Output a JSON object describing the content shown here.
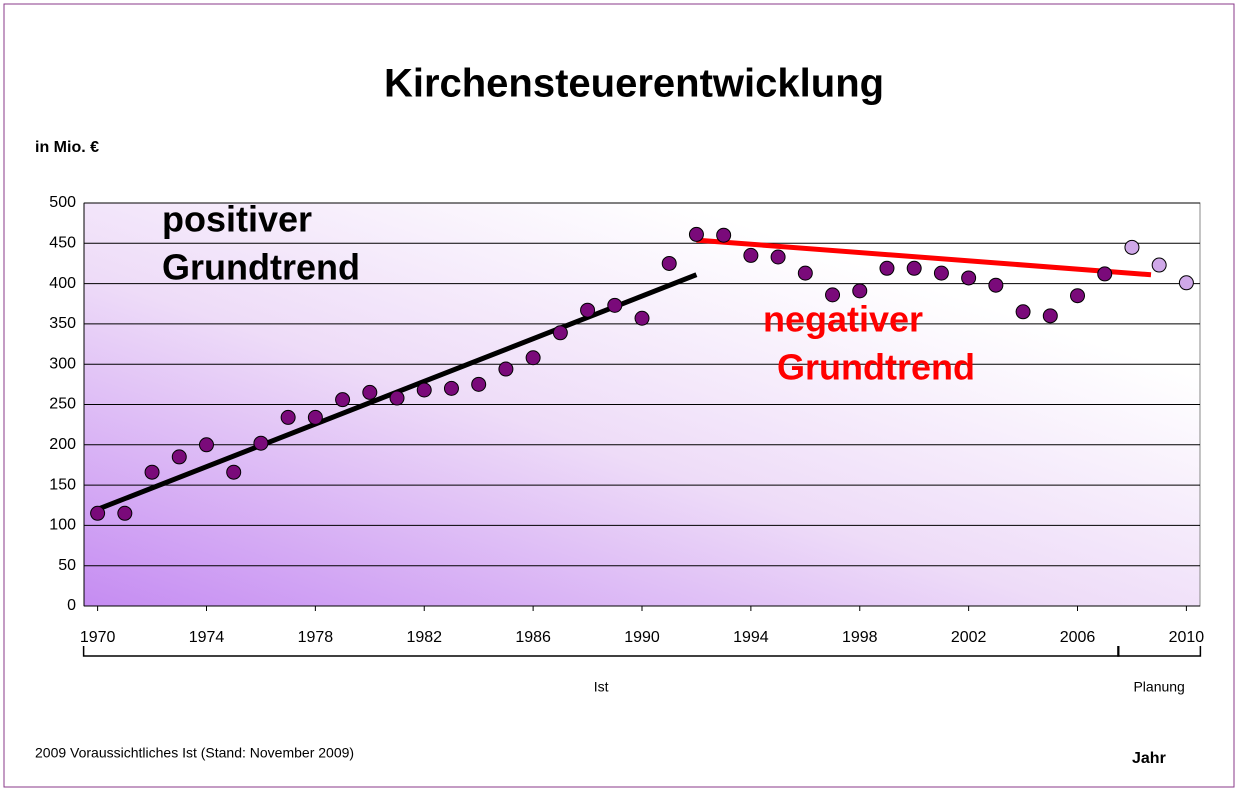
{
  "chart_data": {
    "type": "scatter",
    "title": "Kirchensteuerentwicklung",
    "y_label": "in Mio. €",
    "x_label": "Jahr",
    "footnote": "2009 Voraussichtliches Ist (Stand: November 2009)",
    "xlim": [
      1969.5,
      2010.5
    ],
    "xticks": [
      1970,
      1974,
      1978,
      1982,
      1986,
      1990,
      1994,
      1998,
      2002,
      2006,
      2010
    ],
    "ylim": [
      0,
      500
    ],
    "yticks": [
      0,
      50,
      100,
      150,
      200,
      250,
      300,
      350,
      400,
      450,
      500
    ],
    "grid": true,
    "series": [
      {
        "name": "Ist",
        "color": "#7a0a7a",
        "x": [
          1970,
          1971,
          1972,
          1973,
          1974,
          1975,
          1976,
          1977,
          1978,
          1979,
          1980,
          1981,
          1982,
          1983,
          1984,
          1985,
          1986,
          1987,
          1988,
          1989,
          1990,
          1991,
          1992,
          1993,
          1994,
          1995,
          1996,
          1997,
          1998,
          1999,
          2000,
          2001,
          2002,
          2003,
          2004,
          2005,
          2006,
          2007
        ],
        "values": [
          115,
          115,
          166,
          185,
          200,
          166,
          202,
          234,
          234,
          256,
          265,
          258,
          268,
          270,
          275,
          294,
          308,
          339,
          367,
          373,
          357,
          425,
          461,
          460,
          435,
          433,
          413,
          386,
          391,
          419,
          419,
          413,
          407,
          398,
          365,
          360,
          385,
          412
        ]
      },
      {
        "name": "Planung",
        "color": "#cfa8e8",
        "x": [
          2008,
          2009,
          2010
        ],
        "values": [
          445,
          423,
          401
        ]
      }
    ],
    "trend_lines": [
      {
        "label_lines": [
          "positiver",
          "Grundtrend"
        ],
        "color": "#000000",
        "x": [
          1970,
          1992
        ],
        "values": [
          120,
          411
        ]
      },
      {
        "label_lines": [
          "negativer",
          "Grundtrend"
        ],
        "color": "#ff0000",
        "x": [
          1992,
          2008.7
        ],
        "values": [
          454,
          411
        ]
      }
    ]
  }
}
